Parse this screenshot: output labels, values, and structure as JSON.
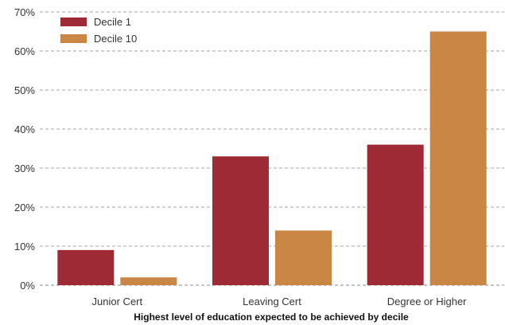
{
  "chart_data": {
    "type": "bar",
    "title": "",
    "xlabel": "Highest level of education expected to be achieved by decile",
    "ylabel": "",
    "categories": [
      "Junior Cert",
      "Leaving Cert",
      "Degree or Higher"
    ],
    "series": [
      {
        "name": "Decile 1",
        "values": [
          9,
          33,
          36
        ],
        "color": "#9e2a36"
      },
      {
        "name": "Decile 10",
        "values": [
          2,
          14,
          65
        ],
        "color": "#c98644"
      }
    ],
    "ylim": [
      0,
      70
    ],
    "yticks": [
      0,
      10,
      20,
      30,
      40,
      50,
      60,
      70
    ],
    "ytick_labels": [
      "0%",
      "10%",
      "20%",
      "30%",
      "40%",
      "50%",
      "60%",
      "70%"
    ],
    "grid": "horizontal dashed",
    "legend": "top-left"
  }
}
